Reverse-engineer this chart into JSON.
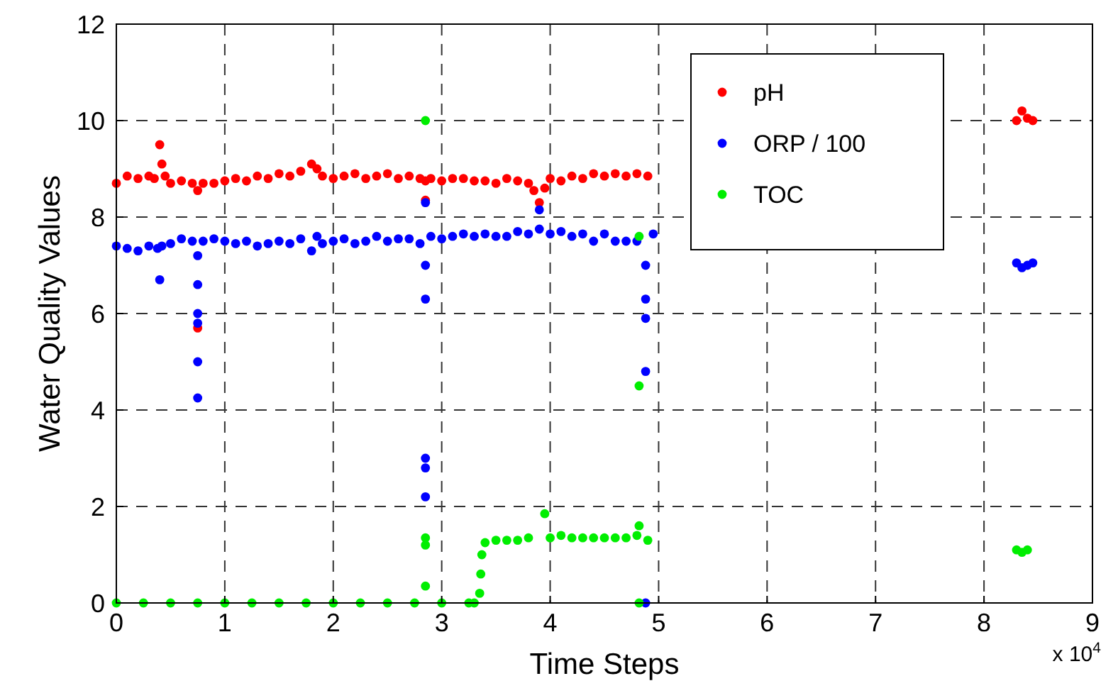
{
  "chart_data": {
    "type": "scatter",
    "xlabel": "Time Steps",
    "ylabel": "Water Quality Values",
    "xlim": [
      0,
      9
    ],
    "ylim": [
      0,
      12
    ],
    "xticks": [
      0,
      1,
      2,
      3,
      4,
      5,
      6,
      7,
      8,
      9
    ],
    "yticks": [
      0,
      2,
      4,
      6,
      8,
      10,
      12
    ],
    "grid": true,
    "legend": "top right",
    "marker": "circle",
    "annotations": [
      "x 10$^{4}$"
    ],
    "series": [
      {
        "name": "pH",
        "color": "#ff0000",
        "x": [
          0,
          0.1,
          0.2,
          0.3,
          0.35,
          0.4,
          0.42,
          0.45,
          0.5,
          0.6,
          0.7,
          0.75,
          0.8,
          0.9,
          1.0,
          1.1,
          1.2,
          1.3,
          1.4,
          1.5,
          1.6,
          1.7,
          1.8,
          1.85,
          1.9,
          2.0,
          2.1,
          2.2,
          2.3,
          2.4,
          2.5,
          2.6,
          2.7,
          2.8,
          2.85,
          2.85,
          2.9,
          3.0,
          3.1,
          3.2,
          3.3,
          3.4,
          3.5,
          3.6,
          3.7,
          3.8,
          3.85,
          3.9,
          3.95,
          4.0,
          4.1,
          4.2,
          4.3,
          4.4,
          4.5,
          4.6,
          4.7,
          4.8,
          4.9,
          0.75,
          8.3,
          8.35,
          8.4,
          8.45
        ],
        "values": [
          8.7,
          8.85,
          8.8,
          8.85,
          8.8,
          9.5,
          9.1,
          8.85,
          8.7,
          8.75,
          8.7,
          8.55,
          8.7,
          8.7,
          8.75,
          8.8,
          8.75,
          8.85,
          8.8,
          8.9,
          8.85,
          8.95,
          9.1,
          9.0,
          8.85,
          8.8,
          8.85,
          8.9,
          8.8,
          8.85,
          8.9,
          8.8,
          8.85,
          8.8,
          8.75,
          8.35,
          8.8,
          8.75,
          8.8,
          8.8,
          8.75,
          8.75,
          8.7,
          8.8,
          8.75,
          8.7,
          8.55,
          8.3,
          8.6,
          8.8,
          8.75,
          8.85,
          8.8,
          8.9,
          8.85,
          8.9,
          8.85,
          8.9,
          8.85,
          5.7,
          10.0,
          10.2,
          10.05,
          10.0
        ]
      },
      {
        "name": "ORP / 100",
        "color": "#0000ff",
        "x": [
          0,
          0.1,
          0.2,
          0.3,
          0.38,
          0.4,
          0.42,
          0.5,
          0.6,
          0.7,
          0.75,
          0.75,
          0.75,
          0.75,
          0.75,
          0.75,
          0.8,
          0.9,
          1.0,
          1.1,
          1.2,
          1.3,
          1.4,
          1.5,
          1.6,
          1.7,
          1.8,
          1.85,
          1.9,
          2.0,
          2.1,
          2.2,
          2.3,
          2.4,
          2.5,
          2.6,
          2.7,
          2.8,
          2.85,
          2.85,
          2.85,
          2.85,
          2.85,
          2.85,
          2.9,
          3.0,
          3.1,
          3.2,
          3.3,
          3.4,
          3.5,
          3.6,
          3.7,
          3.8,
          3.9,
          3.9,
          4.0,
          4.1,
          4.2,
          4.3,
          4.4,
          4.5,
          4.6,
          4.7,
          4.8,
          4.88,
          4.88,
          4.88,
          4.88,
          4.88,
          4.95,
          8.3,
          8.35,
          8.4,
          8.45
        ],
        "values": [
          7.4,
          7.35,
          7.3,
          7.4,
          7.35,
          6.7,
          7.4,
          7.45,
          7.55,
          7.5,
          7.2,
          6.6,
          6.0,
          5.8,
          5.0,
          4.25,
          7.5,
          7.55,
          7.5,
          7.45,
          7.5,
          7.4,
          7.45,
          7.5,
          7.45,
          7.55,
          7.3,
          7.6,
          7.45,
          7.5,
          7.55,
          7.45,
          7.5,
          7.6,
          7.5,
          7.55,
          7.55,
          7.45,
          7.0,
          6.3,
          8.3,
          3.0,
          2.8,
          2.2,
          7.6,
          7.55,
          7.6,
          7.65,
          7.6,
          7.65,
          7.6,
          7.6,
          7.7,
          7.65,
          7.75,
          8.15,
          7.65,
          7.7,
          7.6,
          7.65,
          7.5,
          7.65,
          7.5,
          7.5,
          7.5,
          7.0,
          6.3,
          5.9,
          4.8,
          0.0,
          7.65,
          7.05,
          6.95,
          7.0,
          7.05
        ]
      },
      {
        "name": "TOC",
        "color": "#00ee00",
        "x": [
          0,
          0.25,
          0.5,
          0.75,
          1.0,
          1.25,
          1.5,
          1.75,
          2.0,
          2.25,
          2.5,
          2.75,
          2.85,
          2.85,
          2.85,
          2.85,
          3.0,
          3.25,
          3.3,
          3.35,
          3.36,
          3.37,
          3.4,
          3.5,
          3.6,
          3.7,
          3.8,
          3.95,
          4.0,
          4.1,
          4.2,
          4.3,
          4.4,
          4.5,
          4.6,
          4.7,
          4.8,
          4.82,
          4.82,
          4.82,
          4.82,
          4.9,
          8.3,
          8.35,
          8.4
        ],
        "values": [
          0,
          0,
          0,
          0,
          0,
          0,
          0,
          0,
          0,
          0,
          0,
          0,
          10.0,
          1.35,
          1.2,
          0.35,
          0,
          0,
          0,
          0.2,
          0.6,
          1.0,
          1.25,
          1.3,
          1.3,
          1.3,
          1.35,
          1.85,
          1.35,
          1.4,
          1.35,
          1.35,
          1.35,
          1.35,
          1.35,
          1.35,
          1.4,
          7.6,
          4.5,
          1.6,
          0.0,
          1.3,
          1.1,
          1.05,
          1.1
        ]
      }
    ]
  }
}
